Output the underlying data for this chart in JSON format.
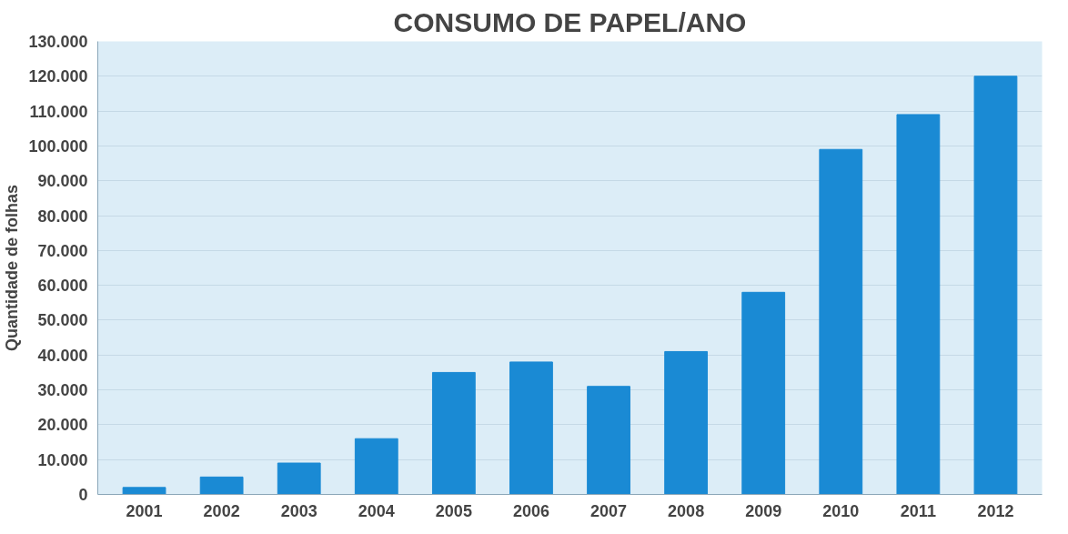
{
  "chart_data": {
    "type": "bar",
    "title": "CONSUMO DE PAPEL/ANO",
    "ylabel": "Quantidade de folhas",
    "categories": [
      "2001",
      "2002",
      "2003",
      "2004",
      "2005",
      "2006",
      "2007",
      "2008",
      "2009",
      "2010",
      "2011",
      "2012"
    ],
    "values": [
      2000,
      5000,
      9000,
      16000,
      35000,
      38000,
      31000,
      41000,
      58000,
      99000,
      109000,
      120000
    ],
    "color": "#1a8ad4",
    "ylim": [
      0,
      130000
    ],
    "yticks": [
      0,
      {
        "value": 10000,
        "label": "10.000"
      },
      {
        "value": 20000,
        "label": "20.000"
      },
      {
        "value": 30000,
        "label": "30.000"
      },
      {
        "value": 40000,
        "label": "40.000"
      },
      {
        "value": 50000,
        "label": "50.000"
      },
      {
        "value": 60000,
        "label": "60.000"
      },
      {
        "value": 70000,
        "label": "70.000"
      },
      {
        "value": 80000,
        "label": "80.000"
      },
      {
        "value": 90000,
        "label": "90.000"
      },
      {
        "value": 100000,
        "label": "100.000"
      },
      {
        "value": 110000,
        "label": "110.000"
      },
      {
        "value": 120000,
        "label": "120.000"
      },
      {
        "value": 130000,
        "label": "130.000"
      }
    ],
    "grid": "y"
  }
}
